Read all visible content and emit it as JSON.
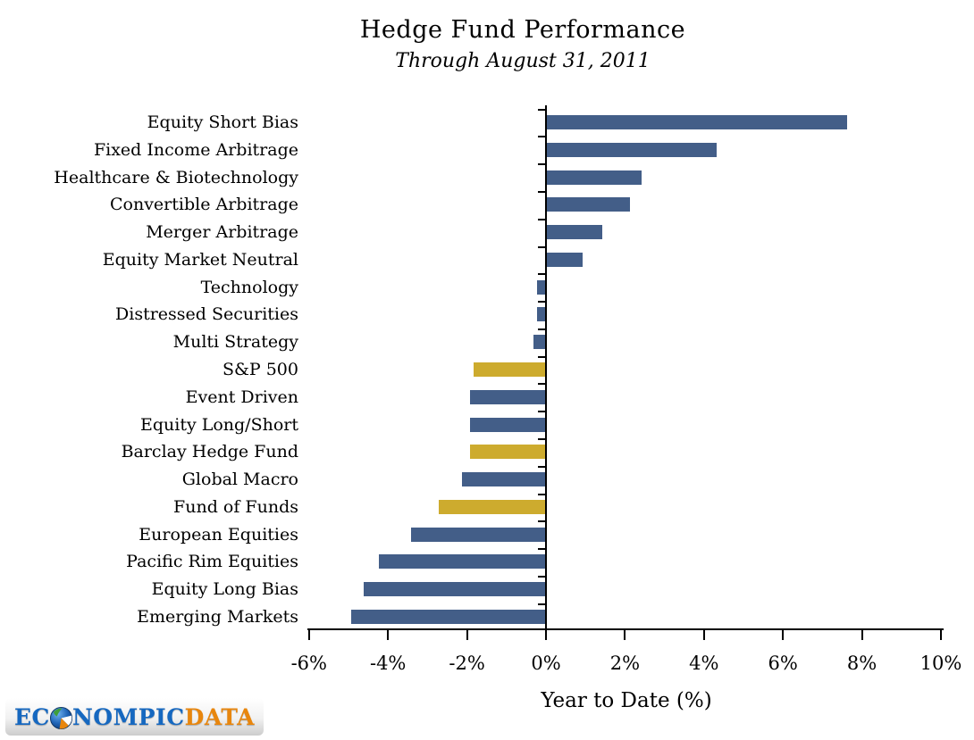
{
  "title": "Hedge Fund Performance",
  "subtitle": "Through August 31, 2011",
  "chart_data": {
    "type": "bar",
    "orientation": "horizontal",
    "title": "Hedge Fund Performance",
    "subtitle": "Through August 31, 2011",
    "xlabel": "Year to Date (%)",
    "ylabel": "",
    "xlim": [
      -6,
      10
    ],
    "grid": false,
    "legend": "none",
    "categories": [
      "Equity Short Bias",
      "Fixed Income Arbitrage",
      "Healthcare & Biotechnology",
      "Convertible Arbitrage",
      "Merger Arbitrage",
      "Equity Market Neutral",
      "Technology",
      "Distressed Securities",
      "Multi Strategy",
      "S&P 500",
      "Event Driven",
      "Equity Long/Short",
      "Barclay Hedge Fund",
      "Global Macro",
      "Fund of Funds",
      "European Equities",
      "Pacific Rim Equities",
      "Equity Long Bias",
      "Emerging Markets"
    ],
    "values": [
      7.6,
      4.3,
      2.4,
      2.1,
      1.4,
      0.9,
      -0.2,
      -0.2,
      -0.3,
      -1.8,
      -1.9,
      -1.9,
      -1.9,
      -2.1,
      -2.7,
      -3.4,
      -4.2,
      -4.6,
      -4.9
    ],
    "bar_colors": [
      "blue",
      "blue",
      "blue",
      "blue",
      "blue",
      "blue",
      "blue",
      "blue",
      "blue",
      "gold",
      "blue",
      "blue",
      "gold",
      "blue",
      "gold",
      "blue",
      "blue",
      "blue",
      "blue"
    ],
    "highlighted_categories": [
      "S&P 500",
      "Barclay Hedge Fund",
      "Fund of Funds"
    ],
    "xtick_values": [
      -6,
      -4,
      -2,
      0,
      2,
      4,
      6,
      8,
      10
    ],
    "xtick_labels": [
      "-6%",
      "-4%",
      "-2%",
      "0%",
      "2%",
      "4%",
      "6%",
      "8%",
      "10%"
    ],
    "colors": {
      "blue": "#435e88",
      "gold": "#cdab2e",
      "axis": "#000000"
    }
  },
  "logo": {
    "text_ec": "EC",
    "text_nompic": "NOMPIC",
    "text_data": "DATA",
    "globe_icon": "globe-pie-icon",
    "colors": {
      "blue": "#1668c0",
      "orange": "#e8860d"
    }
  }
}
